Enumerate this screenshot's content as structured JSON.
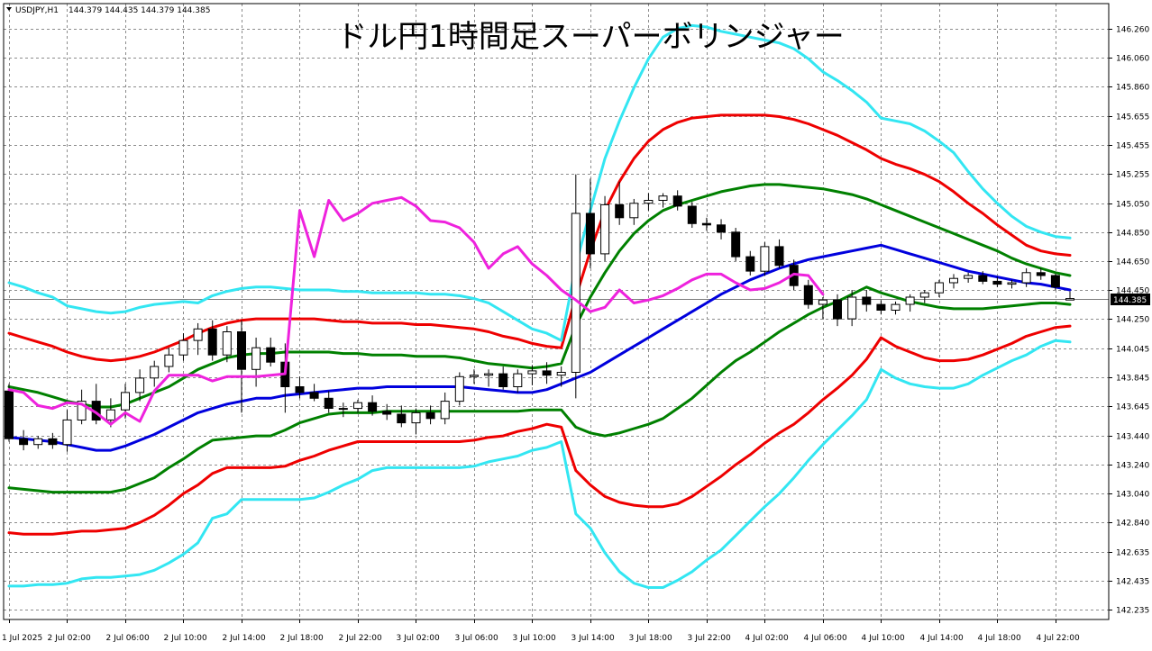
{
  "header": {
    "symbol_label": "USDJPY,H1",
    "ohlc_text": "144.379 144.435 144.379 144.385"
  },
  "chart_data": {
    "type": "candlestick",
    "title": "ドル円1時間足スーパーボリンジャー",
    "y_ticks": [
      "146.260",
      "146.060",
      "145.860",
      "145.655",
      "145.455",
      "145.255",
      "145.050",
      "144.850",
      "144.650",
      "144.450",
      "144.250",
      "144.045",
      "143.845",
      "143.645",
      "143.440",
      "143.240",
      "143.040",
      "142.840",
      "142.635",
      "142.435",
      "142.235"
    ],
    "ylim": [
      142.2,
      146.32
    ],
    "x_tick_labels": [
      "1 Jul 2025",
      "2 Jul 02:00",
      "2 Jul 06:00",
      "2 Jul 10:00",
      "2 Jul 14:00",
      "2 Jul 18:00",
      "2 Jul 22:00",
      "3 Jul 02:00",
      "3 Jul 06:00",
      "3 Jul 10:00",
      "3 Jul 14:00",
      "3 Jul 18:00",
      "3 Jul 22:00",
      "4 Jul 02:00",
      "4 Jul 06:00",
      "4 Jul 10:00",
      "4 Jul 14:00",
      "4 Jul 18:00",
      "4 Jul 22:00"
    ],
    "x_tick_bars": [
      0,
      4,
      8,
      12,
      16,
      20,
      24,
      28,
      32,
      36,
      40,
      44,
      48,
      52,
      56,
      60,
      64,
      68,
      72
    ],
    "bar_count": 74,
    "current_price": "144.385",
    "current_price_value": 144.385,
    "colors": {
      "bullish_fill": "#ffffff",
      "bearish_fill": "#000000",
      "sma": "#0000dd",
      "band_1sigma": "#008000",
      "band_2sigma": "#ee0000",
      "band_3sigma": "#33e6f2",
      "lagging_span": "#ee22dd"
    },
    "candles": [
      [
        143.75,
        143.8,
        143.4,
        143.42
      ],
      [
        143.42,
        143.48,
        143.34,
        143.38
      ],
      [
        143.38,
        143.44,
        143.35,
        143.42
      ],
      [
        143.42,
        143.46,
        143.35,
        143.38
      ],
      [
        143.38,
        143.62,
        143.33,
        143.55
      ],
      [
        143.55,
        143.76,
        143.52,
        143.68
      ],
      [
        143.68,
        143.8,
        143.52,
        143.55
      ],
      [
        143.55,
        143.7,
        143.5,
        143.62
      ],
      [
        143.62,
        143.8,
        143.56,
        143.74
      ],
      [
        143.74,
        143.9,
        143.68,
        143.84
      ],
      [
        143.84,
        143.96,
        143.78,
        143.92
      ],
      [
        143.92,
        144.05,
        143.88,
        144.0
      ],
      [
        144.0,
        144.15,
        143.96,
        144.1
      ],
      [
        144.1,
        144.22,
        144.0,
        144.18
      ],
      [
        144.18,
        144.24,
        143.96,
        144.0
      ],
      [
        144.0,
        144.2,
        143.95,
        144.16
      ],
      [
        144.16,
        144.24,
        143.6,
        143.9
      ],
      [
        143.9,
        144.12,
        143.78,
        144.05
      ],
      [
        144.05,
        144.12,
        143.92,
        143.95
      ],
      [
        143.95,
        144.08,
        143.6,
        143.78
      ],
      [
        143.78,
        143.85,
        143.7,
        143.74
      ],
      [
        143.74,
        143.8,
        143.68,
        143.7
      ],
      [
        143.7,
        143.75,
        143.6,
        143.63
      ],
      [
        143.63,
        143.67,
        143.57,
        143.63
      ],
      [
        143.63,
        143.69,
        143.6,
        143.67
      ],
      [
        143.67,
        143.72,
        143.58,
        143.61
      ],
      [
        143.61,
        143.66,
        143.55,
        143.59
      ],
      [
        143.59,
        143.65,
        143.5,
        143.53
      ],
      [
        143.53,
        143.63,
        143.45,
        143.6
      ],
      [
        143.6,
        143.65,
        143.52,
        143.56
      ],
      [
        143.56,
        143.74,
        143.52,
        143.68
      ],
      [
        143.68,
        143.88,
        143.65,
        143.85
      ],
      [
        143.85,
        143.9,
        143.8,
        143.86
      ],
      [
        143.86,
        143.9,
        143.78,
        143.87
      ],
      [
        143.87,
        143.92,
        143.76,
        143.78
      ],
      [
        143.78,
        143.9,
        143.74,
        143.87
      ],
      [
        143.87,
        143.93,
        143.79,
        143.89
      ],
      [
        143.89,
        143.95,
        143.8,
        143.86
      ],
      [
        143.86,
        143.92,
        143.78,
        143.88
      ],
      [
        143.88,
        145.25,
        143.7,
        144.98
      ],
      [
        144.98,
        145.22,
        144.6,
        144.7
      ],
      [
        144.7,
        145.1,
        144.65,
        145.04
      ],
      [
        145.04,
        145.2,
        144.9,
        144.95
      ],
      [
        144.95,
        145.08,
        144.9,
        145.05
      ],
      [
        145.05,
        145.12,
        145.0,
        145.07
      ],
      [
        145.07,
        145.12,
        145.02,
        145.1
      ],
      [
        145.1,
        145.14,
        145.0,
        145.03
      ],
      [
        145.03,
        145.06,
        144.88,
        144.91
      ],
      [
        144.91,
        144.95,
        144.86,
        144.9
      ],
      [
        144.9,
        144.94,
        144.8,
        144.85
      ],
      [
        144.85,
        144.88,
        144.65,
        144.68
      ],
      [
        144.68,
        144.72,
        144.55,
        144.58
      ],
      [
        144.58,
        144.78,
        144.55,
        144.75
      ],
      [
        144.75,
        144.8,
        144.6,
        144.62
      ],
      [
        144.62,
        144.66,
        144.45,
        144.48
      ],
      [
        144.48,
        144.52,
        144.32,
        144.35
      ],
      [
        144.35,
        144.4,
        144.25,
        144.38
      ],
      [
        144.38,
        144.42,
        144.2,
        144.25
      ],
      [
        144.25,
        144.45,
        144.2,
        144.4
      ],
      [
        144.4,
        144.45,
        144.3,
        144.35
      ],
      [
        144.35,
        144.38,
        144.28,
        144.31
      ],
      [
        144.31,
        144.37,
        144.28,
        144.35
      ],
      [
        144.35,
        144.42,
        144.3,
        144.4
      ],
      [
        144.4,
        144.45,
        144.36,
        144.43
      ],
      [
        144.43,
        144.52,
        144.4,
        144.5
      ],
      [
        144.5,
        144.56,
        144.46,
        144.53
      ],
      [
        144.53,
        144.57,
        144.5,
        144.55
      ],
      [
        144.55,
        144.58,
        144.49,
        144.51
      ],
      [
        144.51,
        144.54,
        144.47,
        144.49
      ],
      [
        144.49,
        144.52,
        144.46,
        144.5
      ],
      [
        144.5,
        144.6,
        144.47,
        144.57
      ],
      [
        144.57,
        144.6,
        144.52,
        144.55
      ],
      [
        144.55,
        144.56,
        144.45,
        144.47
      ],
      [
        144.38,
        144.44,
        144.38,
        144.39
      ]
    ],
    "series": [
      {
        "key": "sma",
        "values": [
          143.43,
          143.42,
          143.41,
          143.4,
          143.38,
          143.36,
          143.34,
          143.34,
          143.37,
          143.41,
          143.45,
          143.5,
          143.55,
          143.6,
          143.63,
          143.66,
          143.68,
          143.7,
          143.7,
          143.72,
          143.73,
          143.74,
          143.75,
          143.76,
          143.77,
          143.77,
          143.78,
          143.78,
          143.78,
          143.78,
          143.78,
          143.78,
          143.77,
          143.76,
          143.75,
          143.74,
          143.74,
          143.76,
          143.8,
          143.84,
          143.88,
          143.94,
          144.0,
          144.06,
          144.12,
          144.18,
          144.24,
          144.3,
          144.36,
          144.42,
          144.47,
          144.52,
          144.56,
          144.6,
          144.63,
          144.66,
          144.68,
          144.7,
          144.72,
          144.74,
          144.76,
          144.73,
          144.7,
          144.67,
          144.64,
          144.61,
          144.58,
          144.56,
          144.54,
          144.52,
          144.5,
          144.49,
          144.47,
          144.45
        ]
      },
      {
        "key": "band_1sigma_upper",
        "values": [
          143.78,
          143.76,
          143.74,
          143.71,
          143.68,
          143.66,
          143.64,
          143.64,
          143.66,
          143.7,
          143.74,
          143.78,
          143.84,
          143.9,
          143.94,
          143.98,
          144.0,
          144.01,
          144.01,
          144.02,
          144.02,
          144.02,
          144.02,
          144.01,
          144.01,
          144.0,
          144.0,
          144.0,
          143.99,
          143.99,
          143.99,
          143.98,
          143.96,
          143.94,
          143.93,
          143.92,
          143.91,
          143.92,
          143.94,
          144.2,
          144.4,
          144.57,
          144.72,
          144.84,
          144.93,
          145.0,
          145.04,
          145.07,
          145.1,
          145.13,
          145.15,
          145.17,
          145.18,
          145.18,
          145.17,
          145.16,
          145.15,
          145.13,
          145.11,
          145.08,
          145.04,
          145.0,
          144.96,
          144.92,
          144.88,
          144.84,
          144.8,
          144.76,
          144.72,
          144.67,
          144.63,
          144.6,
          144.57,
          144.55
        ]
      },
      {
        "key": "band_1sigma_lower",
        "values": [
          143.08,
          143.07,
          143.06,
          143.05,
          143.05,
          143.05,
          143.05,
          143.05,
          143.07,
          143.11,
          143.15,
          143.22,
          143.28,
          143.35,
          143.41,
          143.42,
          143.43,
          143.44,
          143.44,
          143.48,
          143.53,
          143.56,
          143.59,
          143.6,
          143.6,
          143.6,
          143.61,
          143.61,
          143.61,
          143.61,
          143.61,
          143.61,
          143.61,
          143.61,
          143.61,
          143.61,
          143.62,
          143.62,
          143.62,
          143.5,
          143.46,
          143.44,
          143.46,
          143.49,
          143.52,
          143.56,
          143.63,
          143.7,
          143.79,
          143.88,
          143.96,
          144.02,
          144.09,
          144.16,
          144.22,
          144.28,
          144.33,
          144.37,
          144.42,
          144.47,
          144.43,
          144.4,
          144.37,
          144.35,
          144.33,
          144.32,
          144.32,
          144.32,
          144.33,
          144.34,
          144.35,
          144.36,
          144.36,
          144.35
        ]
      },
      {
        "key": "band_2sigma_upper",
        "values": [
          144.15,
          144.12,
          144.09,
          144.06,
          144.02,
          143.99,
          143.97,
          143.96,
          143.97,
          143.99,
          144.02,
          144.06,
          144.1,
          144.15,
          144.19,
          144.22,
          144.24,
          144.25,
          144.25,
          144.25,
          144.25,
          144.25,
          144.24,
          144.23,
          144.23,
          144.22,
          144.22,
          144.22,
          144.21,
          144.21,
          144.2,
          144.19,
          144.18,
          144.16,
          144.13,
          144.11,
          144.08,
          144.06,
          144.05,
          144.4,
          144.72,
          145.0,
          145.2,
          145.36,
          145.48,
          145.56,
          145.61,
          145.64,
          145.65,
          145.66,
          145.66,
          145.66,
          145.66,
          145.65,
          145.63,
          145.6,
          145.56,
          145.52,
          145.47,
          145.42,
          145.36,
          145.32,
          145.29,
          145.25,
          145.2,
          145.13,
          145.05,
          144.98,
          144.9,
          144.83,
          144.76,
          144.72,
          144.7,
          144.69
        ]
      },
      {
        "key": "band_2sigma_lower",
        "values": [
          142.77,
          142.76,
          142.76,
          142.76,
          142.77,
          142.78,
          142.78,
          142.79,
          142.8,
          142.84,
          142.89,
          142.96,
          143.04,
          143.1,
          143.18,
          143.22,
          143.22,
          143.22,
          143.22,
          143.23,
          143.27,
          143.3,
          143.34,
          143.37,
          143.4,
          143.4,
          143.4,
          143.4,
          143.4,
          143.4,
          143.4,
          143.4,
          143.41,
          143.43,
          143.44,
          143.47,
          143.49,
          143.52,
          143.5,
          143.2,
          143.1,
          143.02,
          142.98,
          142.96,
          142.95,
          142.95,
          142.97,
          143.02,
          143.09,
          143.16,
          143.24,
          143.31,
          143.39,
          143.46,
          143.52,
          143.6,
          143.69,
          143.77,
          143.86,
          143.97,
          144.12,
          144.06,
          144.02,
          143.98,
          143.96,
          143.96,
          143.97,
          144.0,
          144.04,
          144.08,
          144.13,
          144.16,
          144.19,
          144.2
        ]
      },
      {
        "key": "band_3sigma_upper",
        "values": [
          144.5,
          144.47,
          144.43,
          144.4,
          144.34,
          144.32,
          144.3,
          144.29,
          144.3,
          144.33,
          144.35,
          144.36,
          144.37,
          144.36,
          144.41,
          144.44,
          144.46,
          144.47,
          144.47,
          144.46,
          144.45,
          144.45,
          144.45,
          144.44,
          144.44,
          144.43,
          144.43,
          144.43,
          144.43,
          144.42,
          144.42,
          144.41,
          144.39,
          144.36,
          144.3,
          144.24,
          144.18,
          144.15,
          144.1,
          144.62,
          145.0,
          145.36,
          145.62,
          145.85,
          146.05,
          146.2,
          146.26,
          146.28,
          146.27,
          146.24,
          146.22,
          146.2,
          146.18,
          146.16,
          146.12,
          146.05,
          145.96,
          145.9,
          145.83,
          145.75,
          145.64,
          145.62,
          145.6,
          145.55,
          145.48,
          145.4,
          145.27,
          145.15,
          145.05,
          144.96,
          144.89,
          144.85,
          144.82,
          144.81
        ]
      },
      {
        "key": "band_3sigma_lower",
        "values": [
          142.4,
          142.4,
          142.41,
          142.41,
          142.42,
          142.45,
          142.46,
          142.46,
          142.47,
          142.48,
          142.51,
          142.56,
          142.62,
          142.7,
          142.87,
          142.9,
          143.0,
          143.0,
          143.0,
          143.0,
          143.0,
          143.01,
          143.05,
          143.1,
          143.14,
          143.2,
          143.22,
          143.22,
          143.22,
          143.22,
          143.22,
          143.22,
          143.23,
          143.26,
          143.28,
          143.3,
          143.34,
          143.36,
          143.4,
          142.9,
          142.8,
          142.63,
          142.5,
          142.42,
          142.39,
          142.39,
          142.44,
          142.5,
          142.58,
          142.65,
          142.75,
          142.85,
          142.95,
          143.04,
          143.15,
          143.27,
          143.38,
          143.48,
          143.58,
          143.69,
          143.9,
          143.84,
          143.8,
          143.78,
          143.77,
          143.77,
          143.8,
          143.86,
          143.91,
          143.96,
          144.0,
          144.06,
          144.1,
          144.09
        ]
      },
      {
        "key": "lagging_span",
        "values": [
          143.76,
          143.74,
          143.65,
          143.63,
          143.67,
          143.66,
          143.6,
          143.52,
          143.6,
          143.54,
          143.75,
          143.86,
          143.86,
          143.86,
          143.82,
          143.85,
          143.85,
          143.85,
          143.86,
          143.87,
          145.0,
          144.68,
          145.07,
          144.93,
          144.98,
          145.05,
          145.07,
          145.09,
          145.03,
          144.93,
          144.92,
          144.88,
          144.78,
          144.6,
          144.7,
          144.75,
          144.63,
          144.55,
          144.45,
          144.38,
          144.3,
          144.33,
          144.45,
          144.36,
          144.38,
          144.41,
          144.46,
          144.52,
          144.56,
          144.56,
          144.5,
          144.45,
          144.46,
          144.5,
          144.56,
          144.55,
          144.42
        ]
      }
    ]
  }
}
